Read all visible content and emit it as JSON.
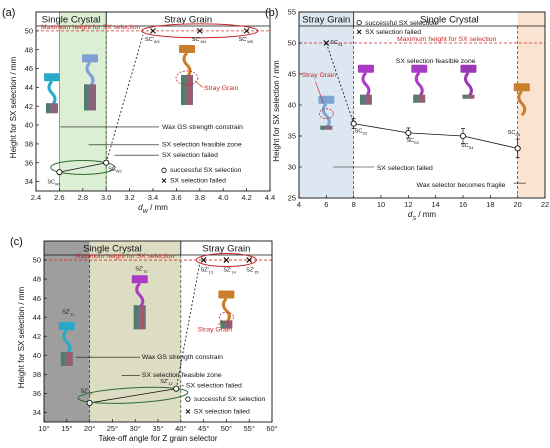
{
  "colors": {
    "red": "#d32f2f",
    "green_zone": "#dcefd5",
    "green_zone_border": "#4caf50",
    "blue_zone": "#dde7f1",
    "orange_zone": "#fbe3d2",
    "gray_zone": "#9e9e9e",
    "olive_zone": "#ddddc3",
    "ellipse_green": "#2e6b2e",
    "ellipse_red": "#c62828"
  },
  "chart_data": [
    {
      "panel": "(a)",
      "type": "line",
      "xlabel": "d_W / mm",
      "xlabel_main": "d",
      "xlabel_sub": "W",
      "xlabel_unit": " / mm",
      "ylabel": "Height for SX selection / mm",
      "xlim": [
        2.4,
        4.4
      ],
      "ylim": [
        33,
        52
      ],
      "xticks": [
        "2.4",
        "2.6",
        "2.8",
        "3.0",
        "3.2",
        "3.4",
        "3.6",
        "3.8",
        "4.0",
        "4.2",
        "4.4"
      ],
      "yticks": [
        "34",
        "36",
        "38",
        "40",
        "42",
        "44",
        "46",
        "48",
        "50"
      ],
      "regions": [
        "Single Crystal",
        "Stray Grain"
      ],
      "max_height_label": "Maximum height for SX selection",
      "max_height": 50,
      "points": [
        {
          "label": "SC_W1",
          "main": "SC",
          "sub": "W1",
          "x": 2.6,
          "y": 35.0,
          "status": "success"
        },
        {
          "label": "SC_W2",
          "main": "SC",
          "sub": "W2",
          "x": 3.0,
          "y": 36.0,
          "status": "success"
        },
        {
          "label": "SC'_W3",
          "main": "SC'",
          "sub": "W3",
          "x": 3.4,
          "y": 50,
          "status": "failed"
        },
        {
          "label": "SC'_W4",
          "main": "SC'",
          "sub": "W4",
          "x": 3.8,
          "y": 50,
          "status": "failed"
        },
        {
          "label": "SC'_W5",
          "main": "SC'",
          "sub": "W5",
          "x": 4.2,
          "y": 50,
          "status": "failed"
        }
      ],
      "annotations": [
        "Wax GS strength constrain",
        "SX selection feasible zone",
        "SX selection failed",
        "Stray Grain"
      ],
      "legend": [
        "successful SX selection",
        "SX selection failed"
      ]
    },
    {
      "panel": "(b)",
      "type": "line",
      "xlabel": "d_S / mm",
      "xlabel_main": "d",
      "xlabel_sub": "S",
      "xlabel_unit": " / mm",
      "ylabel": "Height for SX selection / mm",
      "xlim": [
        4,
        22
      ],
      "ylim": [
        25,
        55
      ],
      "xticks": [
        "4",
        "6",
        "8",
        "10",
        "12",
        "14",
        "16",
        "18",
        "20",
        "22"
      ],
      "yticks": [
        "25",
        "30",
        "35",
        "40",
        "45",
        "50",
        "55"
      ],
      "regions": [
        "Stray Grain",
        "Single Crystal"
      ],
      "max_height_label": "Maximum height for SX selection",
      "max_height": 50,
      "zone_label": "SX selection feasible zone",
      "points": [
        {
          "label": "SC_S1",
          "main": "SC",
          "sub": "S1",
          "x": 6,
          "y": 50,
          "status": "failed"
        },
        {
          "label": "SC_S2",
          "main": "SC",
          "sub": "S2",
          "x": 8,
          "y": 37.0,
          "status": "success",
          "err": 0.8
        },
        {
          "label": "SC_S3",
          "main": "SC",
          "sub": "S3",
          "x": 12,
          "y": 35.5,
          "status": "success",
          "err": 0.8
        },
        {
          "label": "SC_S4",
          "main": "SC",
          "sub": "S4",
          "x": 16,
          "y": 35.0,
          "status": "success",
          "err": 1.2
        },
        {
          "label": "SC_S5",
          "main": "SC",
          "sub": "S5",
          "x": 20,
          "y": 33.0,
          "status": "success",
          "err": 1.5
        }
      ],
      "annotations": [
        "SX selection failed",
        "Wax selector becomes fragile",
        "Stray Grain"
      ],
      "legend": [
        "successful SX selection",
        "SX selection failed"
      ]
    },
    {
      "panel": "(c)",
      "type": "line",
      "xlabel": "Take-off angle for Z grain selector",
      "ylabel": "Height for SX selection / mm",
      "xlim": [
        10,
        60
      ],
      "ylim": [
        33,
        52
      ],
      "xticks": [
        "10°",
        "15°",
        "20°",
        "25°",
        "30°",
        "35°",
        "40°",
        "45°",
        "50°",
        "55°",
        "60°"
      ],
      "yticks": [
        "34",
        "36",
        "38",
        "40",
        "42",
        "44",
        "46",
        "48",
        "50"
      ],
      "regions": [
        "Single Crystal",
        "Stray Grain"
      ],
      "max_height_label": "Maximum height for SX selection",
      "max_height": 50,
      "points": [
        {
          "label": "SZ'_11",
          "main": "SZ'",
          "sub": "11",
          "x": 20,
          "y": 35.0,
          "status": "success"
        },
        {
          "label": "SZ'_12",
          "main": "SZ'",
          "sub": "12",
          "x": 39,
          "y": 36.5,
          "status": "success"
        },
        {
          "label": "SZ'_13",
          "main": "SZ'",
          "sub": "13",
          "x": 45,
          "y": 50,
          "status": "failed"
        },
        {
          "label": "SZ'_14",
          "main": "SZ'",
          "sub": "14",
          "x": 50,
          "y": 50,
          "status": "failed"
        },
        {
          "label": "SZ'_15",
          "main": "SZ'",
          "sub": "15",
          "x": 55,
          "y": 50,
          "status": "failed"
        }
      ],
      "sample_labels": [
        {
          "main": "SZ'",
          "sub": "11"
        },
        {
          "main": "SZ'",
          "sub": "12"
        }
      ],
      "annotations": [
        "Wax GS strength constrain",
        "SX selection feasible zone",
        "SX selection failed",
        "Stray Grain"
      ],
      "legend": [
        "successful SX selection",
        "SX selection failed"
      ]
    }
  ]
}
